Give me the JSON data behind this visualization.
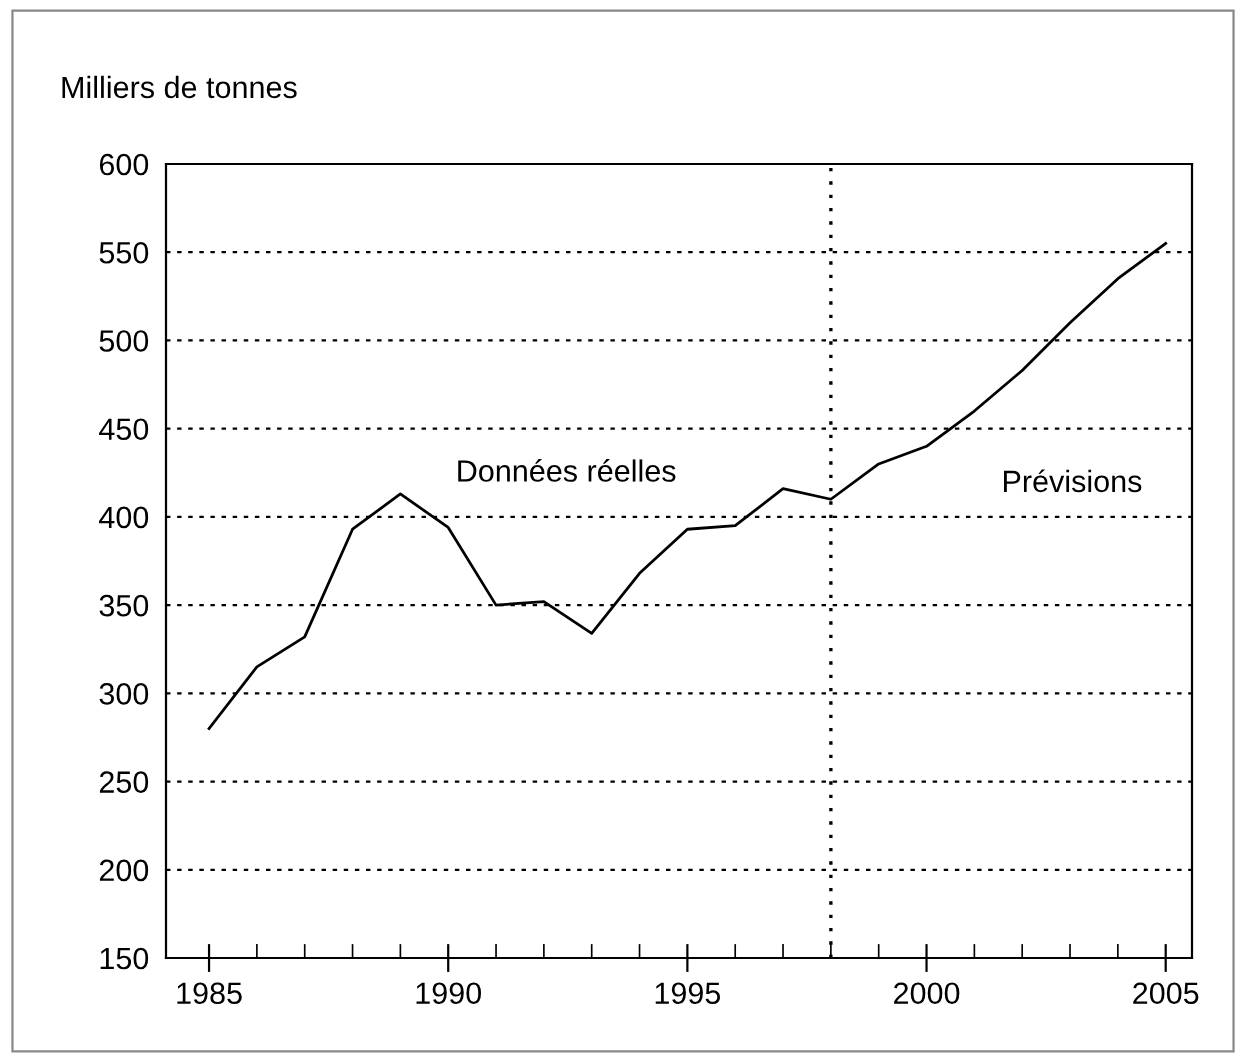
{
  "chart_data": {
    "type": "line",
    "ylabel": "Milliers de tonnes",
    "x": [
      1985,
      1986,
      1987,
      1988,
      1989,
      1990,
      1991,
      1992,
      1993,
      1994,
      1995,
      1996,
      1997,
      1998,
      1999,
      2000,
      2001,
      2002,
      2003,
      2004,
      2005
    ],
    "series": [
      {
        "color": "#000000",
        "values": [
          280,
          315,
          332,
          393,
          413,
          394,
          350,
          352,
          334,
          368,
          393,
          395,
          416,
          410,
          430,
          440,
          460,
          483,
          510,
          535,
          555
        ]
      }
    ],
    "xlim": [
      1984.1,
      2005.55
    ],
    "xticks": [
      1985,
      1990,
      1995,
      2000,
      2005
    ],
    "ylim": [
      150,
      600
    ],
    "yticks": [
      150,
      200,
      250,
      300,
      350,
      400,
      450,
      500,
      550,
      600
    ],
    "grid": "y",
    "marker": "none",
    "line_style": "solid",
    "ref_lines": [
      {
        "axis": "x",
        "value": 1998,
        "line_style": "dotted",
        "color": "#000000"
      }
    ],
    "annotations": [
      "Données réelles",
      "Prévisions"
    ]
  }
}
